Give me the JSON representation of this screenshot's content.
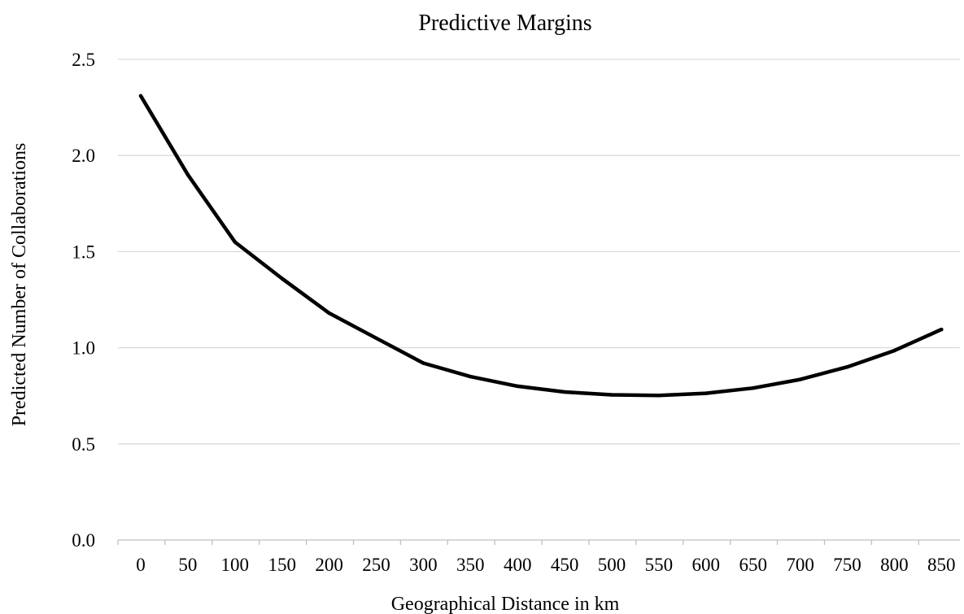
{
  "chart_data": {
    "type": "line",
    "title": "Predictive Margins",
    "xlabel": "Geographical Distance in km",
    "ylabel": "Predicted Number of Collaborations",
    "x": [
      0,
      50,
      100,
      150,
      200,
      250,
      300,
      350,
      400,
      450,
      500,
      550,
      600,
      650,
      700,
      750,
      800,
      850
    ],
    "x_tick_labels": [
      "0",
      "50",
      "100",
      "150",
      "200",
      "250",
      "300",
      "350",
      "400",
      "450",
      "500",
      "550",
      "600",
      "650",
      "700",
      "750",
      "800",
      "850"
    ],
    "series": [
      {
        "values": [
          2.31,
          1.9,
          1.55,
          1.36,
          1.18,
          1.05,
          0.92,
          0.85,
          0.8,
          0.77,
          0.755,
          0.752,
          0.763,
          0.79,
          0.835,
          0.9,
          0.985,
          1.095
        ]
      }
    ],
    "ylim": [
      0,
      2.5
    ],
    "y_ticks": [
      0.0,
      0.5,
      1.0,
      1.5,
      2.0,
      2.5
    ],
    "y_tick_labels": [
      "0.0",
      "0.5",
      "1.0",
      "1.5",
      "2.0",
      "2.5"
    ],
    "grid": true,
    "line_color": "#000000",
    "grid_color": "#d9d9d9"
  }
}
